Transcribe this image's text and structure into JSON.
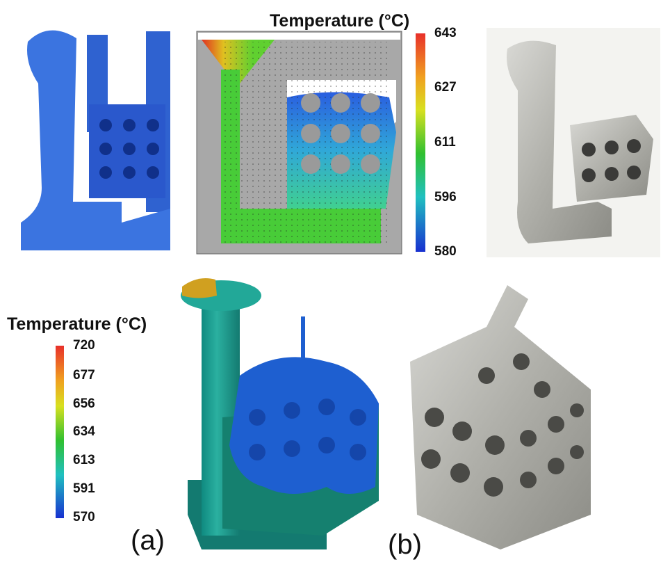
{
  "top_colorbar": {
    "title": "Temperature (°C)",
    "ticks": [
      "643",
      "627",
      "611",
      "596",
      "580"
    ]
  },
  "bottom_colorbar": {
    "title": "Temperature (°C)",
    "ticks": [
      "720",
      "677",
      "656",
      "634",
      "613",
      "591",
      "570"
    ]
  },
  "panel_labels": [
    "(a)",
    "(b)"
  ]
}
